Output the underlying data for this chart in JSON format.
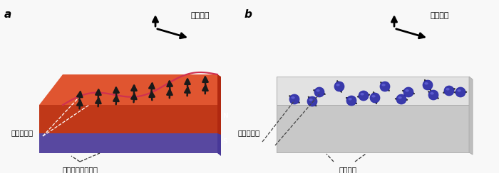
{
  "bg_color": "#f8f8f8",
  "panel_a": {
    "label": "a",
    "spin_flow_label": "スピン流",
    "electron_spin_label": "電子スピン",
    "magnet_label": "磁石（強磁性体）",
    "orange_top": "#e05530",
    "orange_front": "#c03818",
    "orange_right": "#b02810",
    "purple_top": "#7060b8",
    "purple_front": "#5848a0",
    "purple_right": "#483898",
    "wave_color": "#d03050",
    "arrow_color": "#1a1a1a"
  },
  "panel_b": {
    "label": "b",
    "spin_flow_label": "スピン流",
    "electron_spin_label": "電子スピン",
    "material_label": "常磁性体",
    "box_top": "#e2e2e2",
    "box_front": "#c8c8c8",
    "box_left": "#d5d5d5",
    "box_right": "#bebebe",
    "sphere_color": "#3a3aaa",
    "sphere_highlight": "#7878ee",
    "sphere_edge": "#2525aa",
    "arrow_color": "#333333"
  }
}
